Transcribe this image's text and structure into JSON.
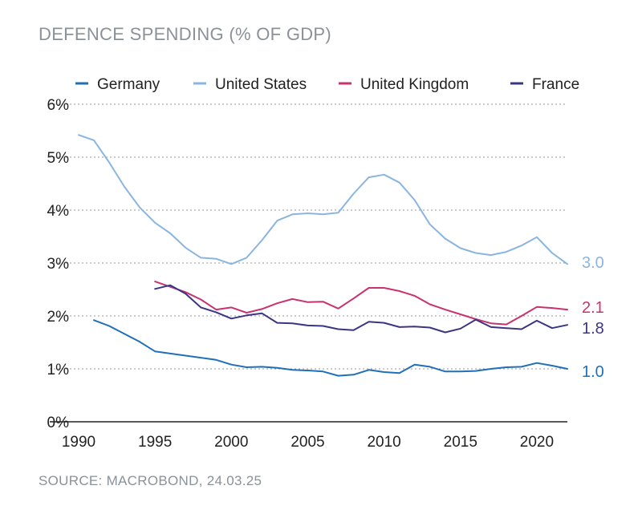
{
  "chart_data": {
    "type": "line",
    "title": "DEFENCE SPENDING (% OF GDP)",
    "source": "SOURCE: MACROBOND, 24.03.25",
    "x_ticks": [
      "1990",
      "1995",
      "2000",
      "2005",
      "2010",
      "2015",
      "2020"
    ],
    "y_ticks": [
      "0%",
      "1%",
      "2%",
      "3%",
      "4%",
      "5%",
      "6%"
    ],
    "xlim": [
      1990,
      2023
    ],
    "ylim": [
      0,
      6
    ],
    "legend_position": "top",
    "series": [
      {
        "name": "Germany",
        "color": "#1f6fba",
        "end_label": "1.0",
        "x": [
          1991,
          1992,
          1993,
          1994,
          1995,
          1996,
          1997,
          1998,
          1999,
          2000,
          2001,
          2002,
          2003,
          2004,
          2005,
          2006,
          2007,
          2008,
          2009,
          2010,
          2011,
          2012,
          2013,
          2014,
          2015,
          2016,
          2017,
          2018,
          2019,
          2020,
          2021,
          2022
        ],
        "values": [
          1.92,
          1.81,
          1.66,
          1.51,
          1.33,
          1.29,
          1.25,
          1.21,
          1.17,
          1.08,
          1.03,
          1.04,
          1.02,
          0.98,
          0.97,
          0.95,
          0.87,
          0.89,
          0.98,
          0.94,
          0.92,
          1.08,
          1.04,
          0.95,
          0.95,
          0.96,
          1.0,
          1.03,
          1.04,
          1.11,
          1.06,
          1.0
        ]
      },
      {
        "name": "United States",
        "color": "#8ab5e1",
        "end_label": "3.0",
        "x": [
          1990,
          1991,
          1992,
          1993,
          1994,
          1995,
          1996,
          1997,
          1998,
          1999,
          2000,
          2001,
          2002,
          2003,
          2004,
          2005,
          2006,
          2007,
          2008,
          2009,
          2010,
          2011,
          2012,
          2013,
          2014,
          2015,
          2016,
          2017,
          2018,
          2019,
          2020,
          2021,
          2022
        ],
        "values": [
          5.42,
          5.32,
          4.9,
          4.44,
          4.05,
          3.76,
          3.56,
          3.29,
          3.1,
          3.08,
          2.98,
          3.1,
          3.43,
          3.8,
          3.92,
          3.94,
          3.92,
          3.95,
          4.31,
          4.62,
          4.67,
          4.52,
          4.19,
          3.73,
          3.46,
          3.28,
          3.19,
          3.15,
          3.21,
          3.33,
          3.49,
          3.19,
          2.98
        ]
      },
      {
        "name": "United Kingdom",
        "color": "#c8336e",
        "end_label": "2.1",
        "x": [
          1995,
          1996,
          1997,
          1998,
          1999,
          2000,
          2001,
          2002,
          2003,
          2004,
          2005,
          2006,
          2007,
          2008,
          2009,
          2010,
          2011,
          2012,
          2013,
          2014,
          2015,
          2016,
          2017,
          2018,
          2019,
          2020,
          2021,
          2022
        ],
        "values": [
          2.65,
          2.55,
          2.45,
          2.31,
          2.12,
          2.16,
          2.06,
          2.13,
          2.24,
          2.32,
          2.26,
          2.27,
          2.14,
          2.33,
          2.53,
          2.53,
          2.47,
          2.38,
          2.22,
          2.12,
          2.03,
          1.94,
          1.86,
          1.84,
          2.0,
          2.17,
          2.15,
          2.12
        ]
      },
      {
        "name": "France",
        "color": "#3c3484",
        "end_label": "1.8",
        "x": [
          1995,
          1996,
          1997,
          1998,
          1999,
          2000,
          2001,
          2002,
          2003,
          2004,
          2005,
          2006,
          2007,
          2008,
          2009,
          2010,
          2011,
          2012,
          2013,
          2014,
          2015,
          2016,
          2017,
          2018,
          2019,
          2020,
          2021,
          2022
        ],
        "values": [
          2.51,
          2.58,
          2.42,
          2.16,
          2.07,
          1.95,
          2.01,
          2.05,
          1.87,
          1.86,
          1.82,
          1.81,
          1.75,
          1.73,
          1.89,
          1.87,
          1.79,
          1.8,
          1.78,
          1.69,
          1.76,
          1.93,
          1.79,
          1.77,
          1.75,
          1.91,
          1.77,
          1.83
        ]
      }
    ]
  }
}
